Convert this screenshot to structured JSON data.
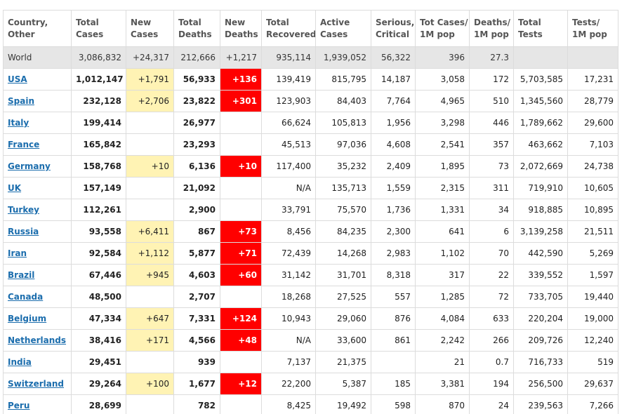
{
  "columns": [
    [
      "Country,",
      "Other"
    ],
    [
      "Total",
      "Cases"
    ],
    [
      "New",
      "Cases"
    ],
    [
      "Total",
      "Deaths"
    ],
    [
      "New",
      "Deaths"
    ],
    [
      "Total",
      "Recovered"
    ],
    [
      "Active",
      "Cases"
    ],
    [
      "Serious,",
      "Critical"
    ],
    [
      "Tot Cases/",
      "1M pop"
    ],
    [
      "Deaths/",
      "1M pop"
    ],
    [
      "Total",
      "Tests"
    ],
    [
      "Tests/",
      "1M pop"
    ]
  ],
  "world": [
    "World",
    "3,086,832",
    "+24,317",
    "212,666",
    "+1,217",
    "935,114",
    "1,939,052",
    "56,322",
    "396",
    "27.3",
    "",
    ""
  ],
  "rows": [
    [
      "USA",
      "1,012,147",
      "+1,791",
      "56,933",
      "+136",
      "139,419",
      "815,795",
      "14,187",
      "3,058",
      "172",
      "5,703,585",
      "17,231"
    ],
    [
      "Spain",
      "232,128",
      "+2,706",
      "23,822",
      "+301",
      "123,903",
      "84,403",
      "7,764",
      "4,965",
      "510",
      "1,345,560",
      "28,779"
    ],
    [
      "Italy",
      "199,414",
      "",
      "26,977",
      "",
      "66,624",
      "105,813",
      "1,956",
      "3,298",
      "446",
      "1,789,662",
      "29,600"
    ],
    [
      "France",
      "165,842",
      "",
      "23,293",
      "",
      "45,513",
      "97,036",
      "4,608",
      "2,541",
      "357",
      "463,662",
      "7,103"
    ],
    [
      "Germany",
      "158,768",
      "+10",
      "6,136",
      "+10",
      "117,400",
      "35,232",
      "2,409",
      "1,895",
      "73",
      "2,072,669",
      "24,738"
    ],
    [
      "UK",
      "157,149",
      "",
      "21,092",
      "",
      "N/A",
      "135,713",
      "1,559",
      "2,315",
      "311",
      "719,910",
      "10,605"
    ],
    [
      "Turkey",
      "112,261",
      "",
      "2,900",
      "",
      "33,791",
      "75,570",
      "1,736",
      "1,331",
      "34",
      "918,885",
      "10,895"
    ],
    [
      "Russia",
      "93,558",
      "+6,411",
      "867",
      "+73",
      "8,456",
      "84,235",
      "2,300",
      "641",
      "6",
      "3,139,258",
      "21,511"
    ],
    [
      "Iran",
      "92,584",
      "+1,112",
      "5,877",
      "+71",
      "72,439",
      "14,268",
      "2,983",
      "1,102",
      "70",
      "442,590",
      "5,269"
    ],
    [
      "Brazil",
      "67,446",
      "+945",
      "4,603",
      "+60",
      "31,142",
      "31,701",
      "8,318",
      "317",
      "22",
      "339,552",
      "1,597"
    ],
    [
      "Canada",
      "48,500",
      "",
      "2,707",
      "",
      "18,268",
      "27,525",
      "557",
      "1,285",
      "72",
      "733,705",
      "19,440"
    ],
    [
      "Belgium",
      "47,334",
      "+647",
      "7,331",
      "+124",
      "10,943",
      "29,060",
      "876",
      "4,084",
      "633",
      "220,204",
      "19,000"
    ],
    [
      "Netherlands",
      "38,416",
      "+171",
      "4,566",
      "+48",
      "N/A",
      "33,600",
      "861",
      "2,242",
      "266",
      "209,726",
      "12,240"
    ],
    [
      "India",
      "29,451",
      "",
      "939",
      "",
      "7,137",
      "21,375",
      "",
      "21",
      "0.7",
      "716,733",
      "519"
    ],
    [
      "Switzerland",
      "29,264",
      "+100",
      "1,677",
      "+12",
      "22,200",
      "5,387",
      "185",
      "3,381",
      "194",
      "256,500",
      "29,637"
    ],
    [
      "Peru",
      "28,699",
      "",
      "782",
      "",
      "8,425",
      "19,492",
      "598",
      "870",
      "24",
      "239,563",
      "7,266"
    ]
  ],
  "colors": {
    "link": "#1b6dad",
    "new_cases_highlight": "#fff3b4",
    "new_deaths_highlight": "#ff0000",
    "world_row_bg": "#e6e6e6",
    "header_text": "#555555"
  }
}
